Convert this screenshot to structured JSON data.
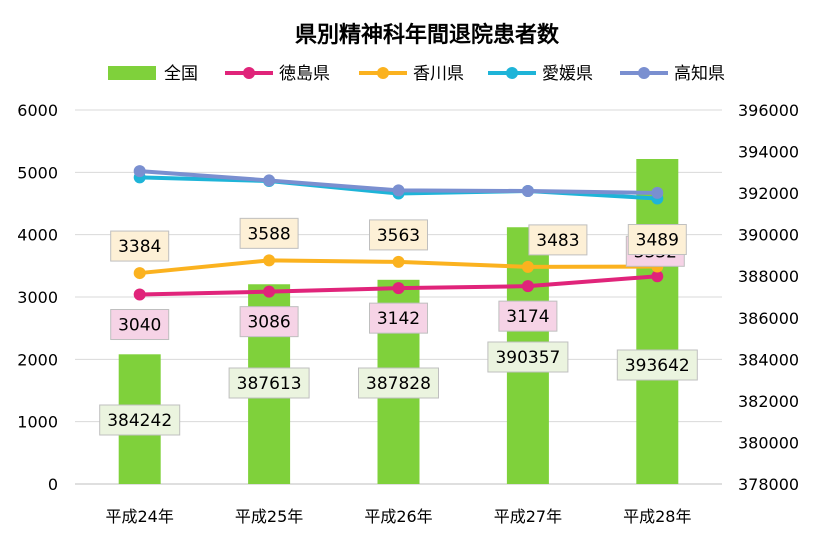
{
  "chart_data": {
    "type": "bar",
    "title": "県別精神科年間退院患者数",
    "categories": [
      "平成24年",
      "平成25年",
      "平成26年",
      "平成27年",
      "平成28年"
    ],
    "bar_series": {
      "name": "全国",
      "axis": "right",
      "values": [
        384242,
        387613,
        387828,
        390357,
        393642
      ],
      "color": "#7fd13b"
    },
    "line_series": [
      {
        "name": "徳島県",
        "axis": "left",
        "values": [
          3040,
          3086,
          3142,
          3174,
          3332
        ],
        "labels": [
          "3040",
          "3086",
          "3142",
          "3174",
          "3332"
        ],
        "color": "#e0247a",
        "label_fill": "#f6d3e6"
      },
      {
        "name": "香川県",
        "axis": "left",
        "values": [
          3384,
          3588,
          3563,
          3483,
          3489
        ],
        "labels": [
          "3384",
          "3588",
          "3563",
          "3483",
          "3489"
        ],
        "color": "#fbb21f",
        "label_fill": "#fdf0d6"
      },
      {
        "name": "愛媛県",
        "axis": "left",
        "values": [
          4920,
          4860,
          4660,
          4700,
          4580
        ],
        "color": "#1eb4d8"
      },
      {
        "name": "高知県",
        "axis": "left",
        "values": [
          5020,
          4870,
          4710,
          4700,
          4670
        ],
        "color": "#7a8fd0"
      }
    ],
    "bar_labels": [
      "384242",
      "387613",
      "387828",
      "390357",
      "393642"
    ],
    "bar_label_fill": "#ebf4df",
    "left_axis": {
      "ylim": [
        0,
        6000
      ],
      "ticks": [
        "0",
        "1000",
        "2000",
        "3000",
        "4000",
        "5000",
        "6000"
      ]
    },
    "right_axis": {
      "ylim": [
        378000,
        396000
      ],
      "ticks": [
        "378000",
        "380000",
        "382000",
        "384000",
        "386000",
        "388000",
        "390000",
        "392000",
        "394000",
        "396000"
      ]
    },
    "grid": true,
    "legend_position": "top"
  }
}
